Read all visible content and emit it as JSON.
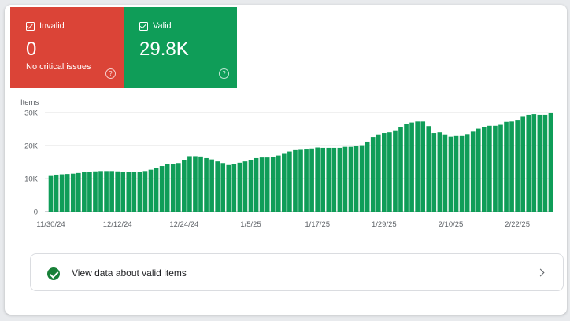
{
  "tiles": {
    "invalid": {
      "label": "Invalid",
      "value": "0",
      "subtitle": "No critical issues",
      "help": "?",
      "color": "#db4437"
    },
    "valid": {
      "label": "Valid",
      "value": "29.8K",
      "help": "?",
      "color": "#0f9d58"
    }
  },
  "chart_data": {
    "type": "bar",
    "ylabel": "Items",
    "ylim": [
      0,
      30000
    ],
    "yticks": [
      "0",
      "10K",
      "20K",
      "30K"
    ],
    "ytick_values": [
      0,
      10000,
      20000,
      30000
    ],
    "xtick_labels": [
      "11/30/24",
      "12/12/24",
      "12/24/24",
      "1/5/25",
      "1/17/25",
      "1/29/25",
      "2/10/25",
      "2/22/25"
    ],
    "xtick_indices": [
      0,
      12,
      24,
      36,
      48,
      60,
      72,
      84
    ],
    "bar_color": "#0f9d58",
    "grid": true,
    "values": [
      10800,
      11200,
      11300,
      11400,
      11500,
      11700,
      11900,
      12100,
      12200,
      12300,
      12300,
      12300,
      12200,
      12100,
      12100,
      12100,
      12100,
      12300,
      12700,
      13300,
      13800,
      14300,
      14500,
      14700,
      15700,
      16800,
      16800,
      16700,
      16200,
      15800,
      15200,
      14700,
      14100,
      14400,
      14800,
      15200,
      15700,
      16200,
      16400,
      16400,
      16600,
      17000,
      17500,
      18200,
      18600,
      18700,
      18800,
      19100,
      19400,
      19300,
      19300,
      19300,
      19300,
      19600,
      19600,
      19900,
      20100,
      21200,
      22600,
      23400,
      23800,
      24000,
      24600,
      25500,
      26500,
      27000,
      27300,
      27300,
      25900,
      23800,
      24000,
      23400,
      22700,
      22900,
      22900,
      23500,
      24200,
      25100,
      25700,
      26000,
      26000,
      26300,
      27200,
      27300,
      27600,
      28700,
      29300,
      29500,
      29300,
      29300,
      29800
    ]
  },
  "footer": {
    "label": "View data about valid items"
  }
}
